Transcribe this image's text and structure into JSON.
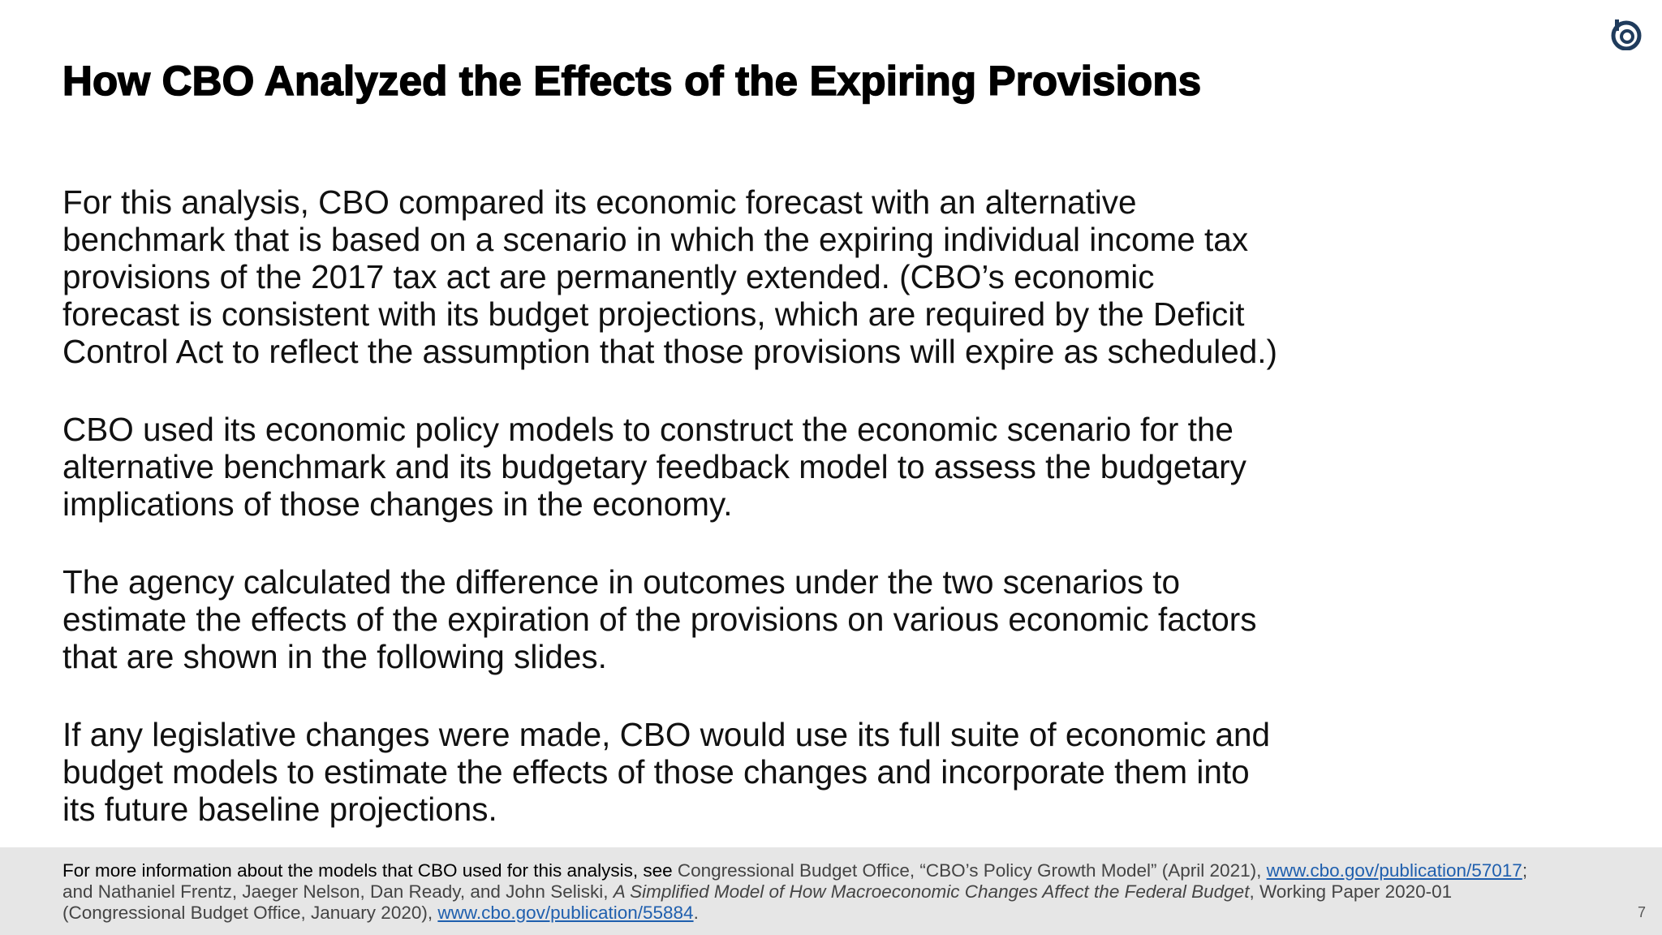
{
  "slide": {
    "title": "How CBO Analyzed the Effects of the Expiring Provisions",
    "logo_icon": "cbo-logo-icon",
    "accent_color": "#1f3b5c",
    "page_number": "7"
  },
  "body": {
    "paragraphs": [
      {
        "lines": [
          "For this analysis, CBO compared its economic forecast with an alternative",
          "benchmark that is based on a scenario in which the expiring individual income tax",
          "provisions of the 2017 tax act are permanently extended. (CBO’s economic",
          "forecast is consistent with its budget projections, which are required by the Deficit",
          "Control Act to reflect the assumption that those provisions will expire as scheduled.)"
        ]
      },
      {
        "lines": [
          "CBO used its economic policy models to construct the economic scenario for the",
          "alternative benchmark and its budgetary feedback model to assess the budgetary",
          "implications of those changes in the economy."
        ]
      },
      {
        "lines": [
          "The agency calculated the difference in outcomes under the two scenarios to",
          "estimate the effects of the expiration of the provisions on various economic factors",
          "that are shown in the following slides."
        ]
      },
      {
        "lines": [
          "If any legislative changes were made, CBO would use its full suite of economic and",
          "budget models to estimate the effects of those changes and incorporate them into",
          "its future baseline projections."
        ]
      }
    ]
  },
  "footnote": {
    "line1_lead": "For more information about the models that CBO used for this analysis, see",
    "line1_ref": " Congressional Budget Office, “CBO’s Policy Growth Model” (April 2021), ",
    "line1_link": "www.cbo.gov/publication/57017",
    "line1_end": ";",
    "line2_start": "and Nathaniel Frentz, Jaeger Nelson, Dan Ready, and John Seliski, ",
    "line2_italic": "A Simplified Model of How Macroeconomic Changes Affect the Federal Budget",
    "line2_end": ", Working Paper 2020-01",
    "line3_start": "(Congressional Budget Office, January 2020), ",
    "line3_link": "www.cbo.gov/publication/55884",
    "line3_end": "."
  }
}
